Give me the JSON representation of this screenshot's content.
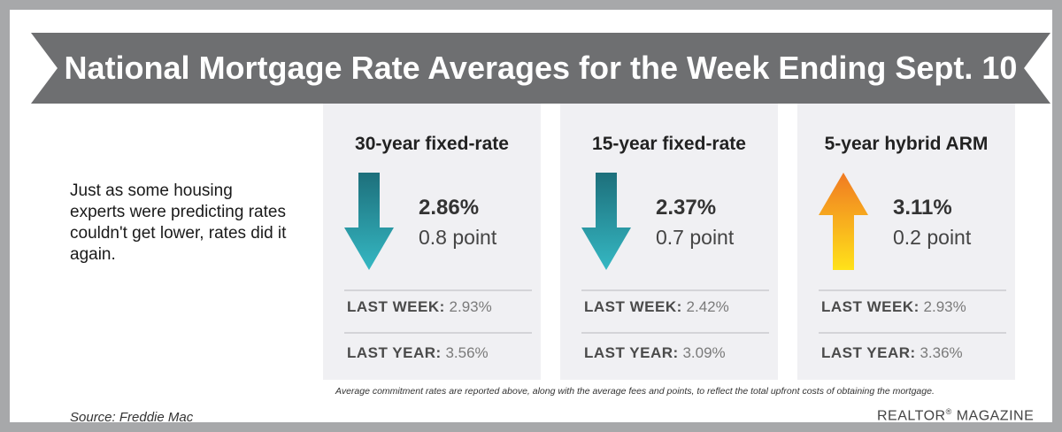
{
  "header": {
    "title": "National Mortgage Rate Averages for the Week Ending Sept. 10"
  },
  "intro": {
    "text": "Just as some housing experts were predicting rates couldn't get lower, rates did it again."
  },
  "cards": [
    {
      "title": "30-year fixed-rate",
      "direction": "down",
      "rate": "2.86%",
      "change": "0.8 point",
      "last_week_label": "LAST WEEK:",
      "last_week_value": "2.93%",
      "last_year_label": "LAST YEAR:",
      "last_year_value": "3.56%"
    },
    {
      "title": "15-year fixed-rate",
      "direction": "down",
      "rate": "2.37%",
      "change": "0.7 point",
      "last_week_label": "LAST WEEK:",
      "last_week_value": "2.42%",
      "last_year_label": "LAST YEAR:",
      "last_year_value": "3.09%"
    },
    {
      "title": "5-year hybrid ARM",
      "direction": "up",
      "rate": "3.11%",
      "change": "0.2 point",
      "last_week_label": "LAST WEEK:",
      "last_week_value": "2.93%",
      "last_year_label": "LAST YEAR:",
      "last_year_value": "3.36%"
    }
  ],
  "footnote": "Average commitment rates are reported above, along with the average fees and points, to reflect the total upfront costs of obtaining the mortgage.",
  "source": "Source: Freddie Mac",
  "brand": {
    "name": "REALTOR",
    "mark": "®",
    "suffix": "MAGAZINE"
  },
  "colors": {
    "banner": "#6e6f71",
    "frame": "#a7a8aa",
    "card_bg": "#f0f0f3",
    "down_arrow_top": "#1d6f7b",
    "down_arrow_bottom": "#35b8c3",
    "up_arrow_top": "#f07a22",
    "up_arrow_bottom": "#ffe21a"
  },
  "icons": {
    "down": "arrow-down-icon",
    "up": "arrow-up-icon"
  }
}
